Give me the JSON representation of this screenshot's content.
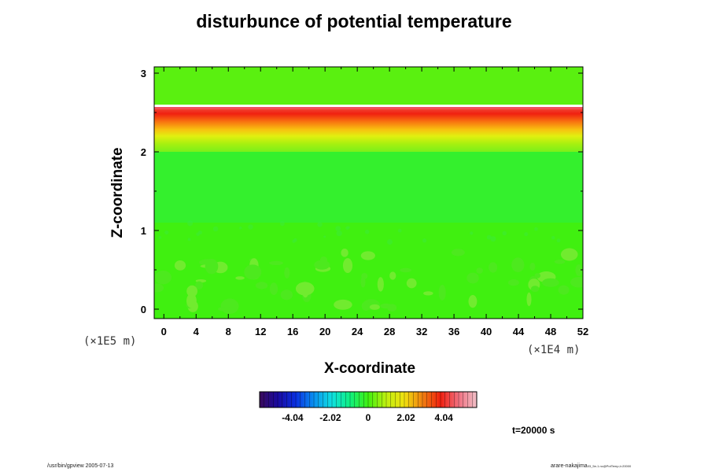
{
  "chart_data": {
    "type": "heatmap",
    "title": "disturbunce of potential temperature",
    "xlabel": "X-coordinate",
    "ylabel": "Z-coordinate",
    "x_unit": "(×1E4 m)",
    "y_unit": "(×1E5 m)",
    "x_ticks": [
      0,
      4,
      8,
      12,
      16,
      20,
      24,
      28,
      32,
      36,
      40,
      44,
      48,
      52
    ],
    "y_ticks": [
      0,
      1,
      2,
      3
    ],
    "xlim": [
      -1.2,
      52
    ],
    "ylim": [
      -0.12,
      3.08
    ],
    "colorbar": {
      "tick_labels": [
        "-4.04",
        "-2.02",
        "0",
        "2.02",
        "4.04"
      ],
      "tick_values": [
        -4.04,
        -2.02,
        0,
        2.02,
        4.04
      ],
      "range": [
        -5.8,
        5.8
      ],
      "colors": [
        "#3a0a5a",
        "#1a0aa0",
        "#0a30e0",
        "#0a90f0",
        "#10e0e0",
        "#10f080",
        "#40f010",
        "#c0f010",
        "#f0e010",
        "#f08010",
        "#f02010",
        "#f07080",
        "#f0c0c8"
      ]
    },
    "layers": [
      {
        "z": [
          2.6,
          3.08
        ],
        "value": 0.2
      },
      {
        "z": [
          2.57,
          2.6
        ],
        "value": 7.0
      },
      {
        "z": [
          2.0,
          2.57
        ],
        "value": [
          0.1,
          4.2
        ]
      },
      {
        "z": [
          1.1,
          2.0
        ],
        "value": -0.25
      },
      {
        "z": [
          -0.12,
          1.1
        ],
        "value": 0.0
      }
    ],
    "time_label": "t=20000 s"
  },
  "footer": {
    "left": "/usr/bin/gpview 2005-07-13",
    "right": "arare-nakajima",
    "right_sub": "03_5e-1.nc@PotTemp,t=20000"
  }
}
